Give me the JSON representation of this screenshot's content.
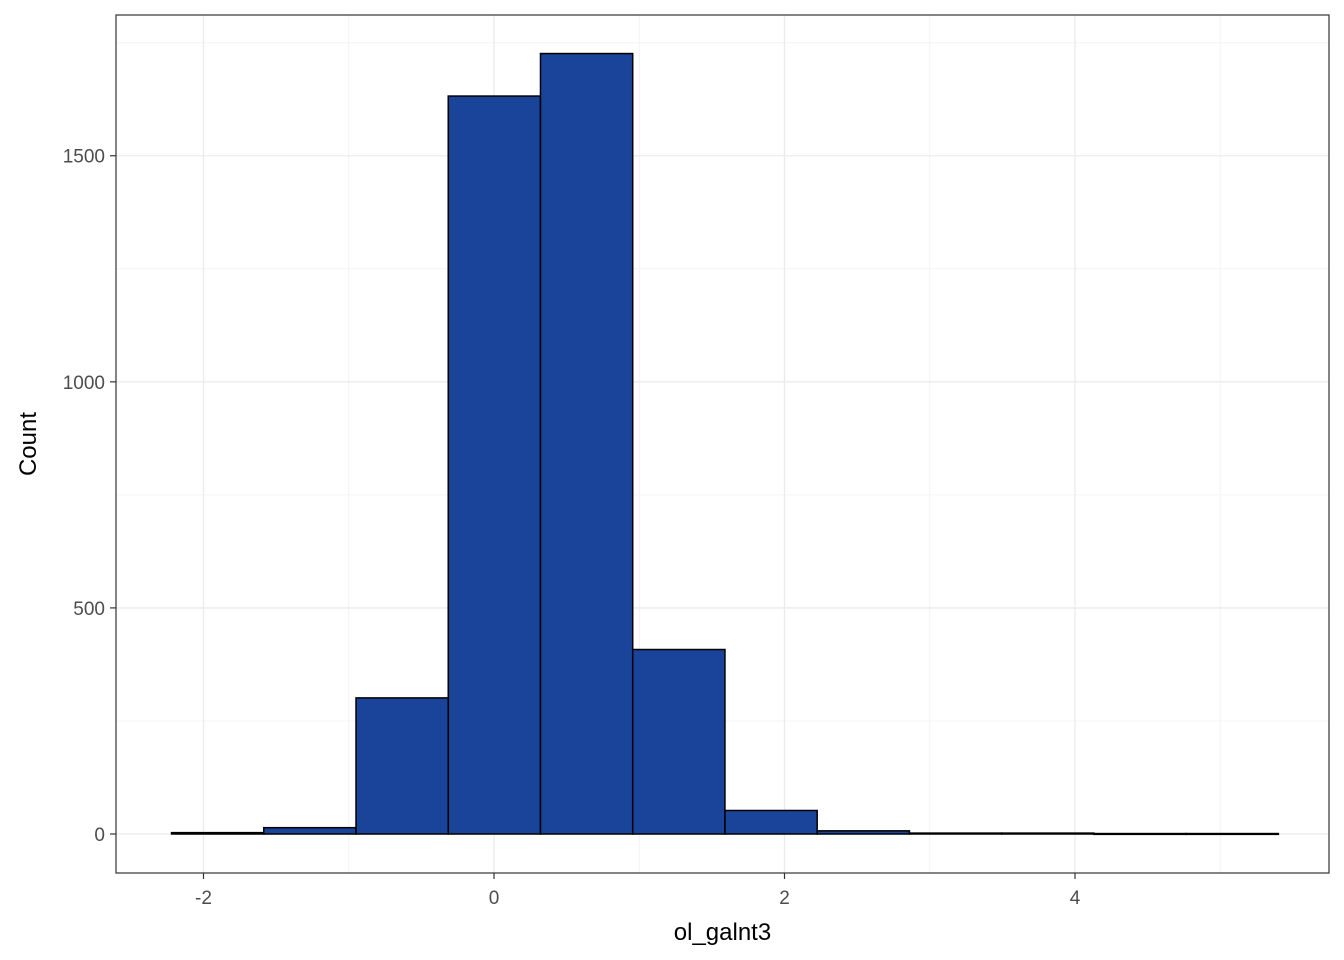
{
  "chart_data": {
    "type": "histogram",
    "title": "",
    "xlabel": "ol_galnt3",
    "ylabel": "Count",
    "xlim": [
      -2.5,
      5.5
    ],
    "ylim": [
      -85,
      1800
    ],
    "x_ticks": [
      -2,
      0,
      2,
      4
    ],
    "x_tick_labels": [
      "-2",
      "0",
      "2",
      "4"
    ],
    "y_ticks": [
      0,
      500,
      1000,
      1500
    ],
    "y_tick_labels": [
      "0",
      "500",
      "1000",
      "1500"
    ],
    "bins": [
      {
        "x0": -2.22,
        "x1": -1.585,
        "count": 3
      },
      {
        "x0": -1.585,
        "x1": -0.95,
        "count": 14
      },
      {
        "x0": -0.95,
        "x1": -0.315,
        "count": 301
      },
      {
        "x0": -0.315,
        "x1": 0.32,
        "count": 1632
      },
      {
        "x0": 0.32,
        "x1": 0.955,
        "count": 1726
      },
      {
        "x0": 0.955,
        "x1": 1.59,
        "count": 408
      },
      {
        "x0": 1.59,
        "x1": 2.225,
        "count": 52
      },
      {
        "x0": 2.225,
        "x1": 2.86,
        "count": 7
      },
      {
        "x0": 2.86,
        "x1": 3.495,
        "count": 2
      },
      {
        "x0": 3.495,
        "x1": 4.13,
        "count": 2
      },
      {
        "x0": 4.13,
        "x1": 4.765,
        "count": 1
      },
      {
        "x0": 4.765,
        "x1": 5.4,
        "count": 1
      }
    ],
    "grid": true,
    "legend": "none",
    "colors": {
      "bar_fill": "#1a4499",
      "bar_stroke": "#000000",
      "grid_major": "#ebebeb",
      "grid_minor": "#f4f4f4",
      "panel_border": "#333333",
      "tick_text": "#4d4d4d"
    }
  }
}
